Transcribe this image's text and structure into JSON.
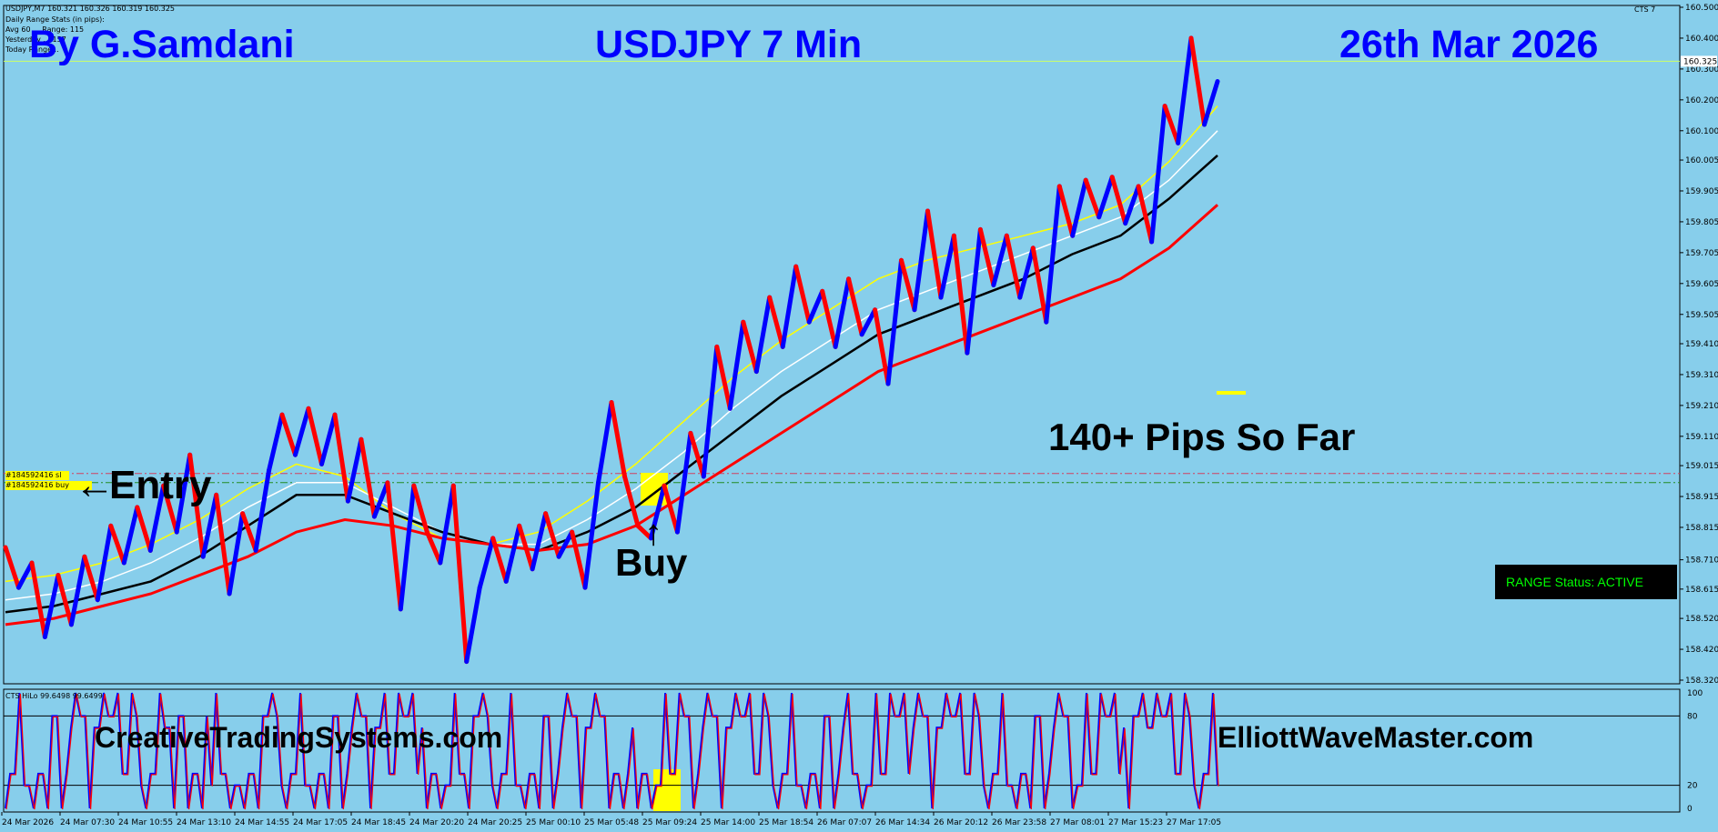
{
  "window": {
    "symbol_header": "USDJPY,M7  160.321 160.326 160.319 160.325",
    "corner_label": "CTS 7"
  },
  "info_panel": {
    "line1": "Daily Range Stats (in pips):",
    "line2": "Avg 60 ... Range: 115",
    "line3": "Yesterday ... 157",
    "line4": "Today Range..."
  },
  "titles": {
    "author": "By G.Samdani",
    "chart_name": "USDJPY 7 Min",
    "date": "26th Mar 2026"
  },
  "annotations": {
    "entry": "Entry",
    "buy": "Buy",
    "pips": "140+ Pips So Far",
    "site_left": "CreativeTradingSystems.com",
    "site_right": "ElliottWaveMaster.com",
    "order_sl": "#184592416 sl",
    "order_buy": "#184592416 buy",
    "entry_arrow_icon": "left-arrow-icon",
    "buy_arrow_icon": "up-arrow-icon"
  },
  "status_box": {
    "label": "RANGE Status: ACTIVE",
    "text_color": "#00FF00",
    "bg_color": "#000000"
  },
  "indicator": {
    "header": "CTS HiLo 99.6498 99.6499",
    "ticks": [
      "100",
      "80",
      "20",
      "0"
    ],
    "levels": [
      80,
      20
    ]
  },
  "colors": {
    "background": "#87CEEB",
    "up_wave": "#0000FF",
    "down_wave": "#FF0000",
    "ma_fast": "#FFFF00",
    "ma_white": "#FFFFFF",
    "ma_black": "#000000",
    "ma_red": "#FF0000",
    "title": "#0000FF"
  },
  "chart_data": {
    "type": "line",
    "title": "USDJPY 7 Min",
    "current_price": "160.325",
    "ylim": [
      158.32,
      160.5
    ],
    "y_ticks": [
      "160.500",
      "160.400",
      "160.300",
      "160.200",
      "160.100",
      "160.005",
      "159.905",
      "159.805",
      "159.705",
      "159.605",
      "159.505",
      "159.410",
      "159.310",
      "159.210",
      "159.110",
      "159.015",
      "158.915",
      "158.815",
      "158.710",
      "158.615",
      "158.520",
      "158.420",
      "158.320"
    ],
    "x_ticks": [
      "24 Mar 2026",
      "24 Mar 07:30",
      "24 Mar 10:55",
      "24 Mar 13:10",
      "24 Mar 14:55",
      "24 Mar 17:05",
      "24 Mar 18:45",
      "24 Mar 20:20",
      "24 Mar 20:25",
      "25 Mar 00:10",
      "25 Mar 05:48",
      "25 Mar 09:24",
      "25 Mar 14:00",
      "25 Mar 18:54",
      "26 Mar 07:07",
      "26 Mar 14:34",
      "26 Mar 20:12",
      "26 Mar 23:58",
      "27 Mar 08:01",
      "27 Mar 15:23",
      "27 Mar 17:05"
    ],
    "price_series": [
      158.75,
      158.62,
      158.7,
      158.46,
      158.66,
      158.5,
      158.72,
      158.58,
      158.82,
      158.7,
      158.88,
      158.74,
      158.95,
      158.8,
      159.05,
      158.72,
      158.92,
      158.6,
      158.86,
      158.74,
      159.0,
      159.18,
      159.05,
      159.2,
      159.02,
      159.18,
      158.9,
      159.1,
      158.85,
      158.96,
      158.55,
      158.95,
      158.8,
      158.7,
      158.95,
      158.38,
      158.62,
      158.78,
      158.64,
      158.82,
      158.68,
      158.86,
      158.72,
      158.8,
      158.62,
      158.96,
      159.22,
      158.98,
      158.82,
      158.78,
      158.95,
      158.8,
      159.12,
      158.98,
      159.4,
      159.2,
      159.48,
      159.32,
      159.56,
      159.4,
      159.66,
      159.48,
      159.58,
      159.4,
      159.62,
      159.44,
      159.52,
      159.28,
      159.68,
      159.52,
      159.84,
      159.56,
      159.76,
      159.38,
      159.78,
      159.6,
      159.76,
      159.56,
      159.72,
      159.48,
      159.92,
      159.76,
      159.94,
      159.82,
      159.95,
      159.8,
      159.92,
      159.74,
      160.18,
      160.06,
      160.4,
      160.12,
      160.26
    ],
    "ma_series": [
      {
        "name": "",
        "color": "#FFFF00",
        "values": [
          158.64,
          158.66,
          158.7,
          158.76,
          158.84,
          158.94,
          159.02,
          158.98,
          158.86,
          158.78,
          158.76,
          158.8,
          158.9,
          159.02,
          159.16,
          159.3,
          159.42,
          159.52,
          159.62,
          159.68,
          159.72,
          159.76,
          159.8,
          159.86,
          160.0,
          160.18
        ]
      },
      {
        "name": "",
        "color": "#FFFFFF",
        "values": [
          158.58,
          158.6,
          158.64,
          158.7,
          158.78,
          158.88,
          158.96,
          158.96,
          158.88,
          158.8,
          158.76,
          158.76,
          158.84,
          158.94,
          159.06,
          159.2,
          159.32,
          159.42,
          159.52,
          159.58,
          159.64,
          159.7,
          159.76,
          159.82,
          159.94,
          160.1
        ]
      },
      {
        "name": "",
        "color": "#000000",
        "values": [
          158.54,
          158.56,
          158.6,
          158.64,
          158.72,
          158.82,
          158.92,
          158.92,
          158.86,
          158.8,
          158.76,
          158.74,
          158.8,
          158.88,
          159.0,
          159.12,
          159.24,
          159.34,
          159.44,
          159.5,
          159.56,
          159.62,
          159.7,
          159.76,
          159.88,
          160.02
        ]
      },
      {
        "name": "",
        "color": "#FF0000",
        "values": [
          158.5,
          158.52,
          158.56,
          158.6,
          158.66,
          158.72,
          158.8,
          158.84,
          158.82,
          158.78,
          158.76,
          158.74,
          158.76,
          158.82,
          158.92,
          159.02,
          159.12,
          159.22,
          159.32,
          159.38,
          159.44,
          159.5,
          159.56,
          159.62,
          159.72,
          159.86
        ]
      }
    ],
    "order_level": 158.96
  }
}
